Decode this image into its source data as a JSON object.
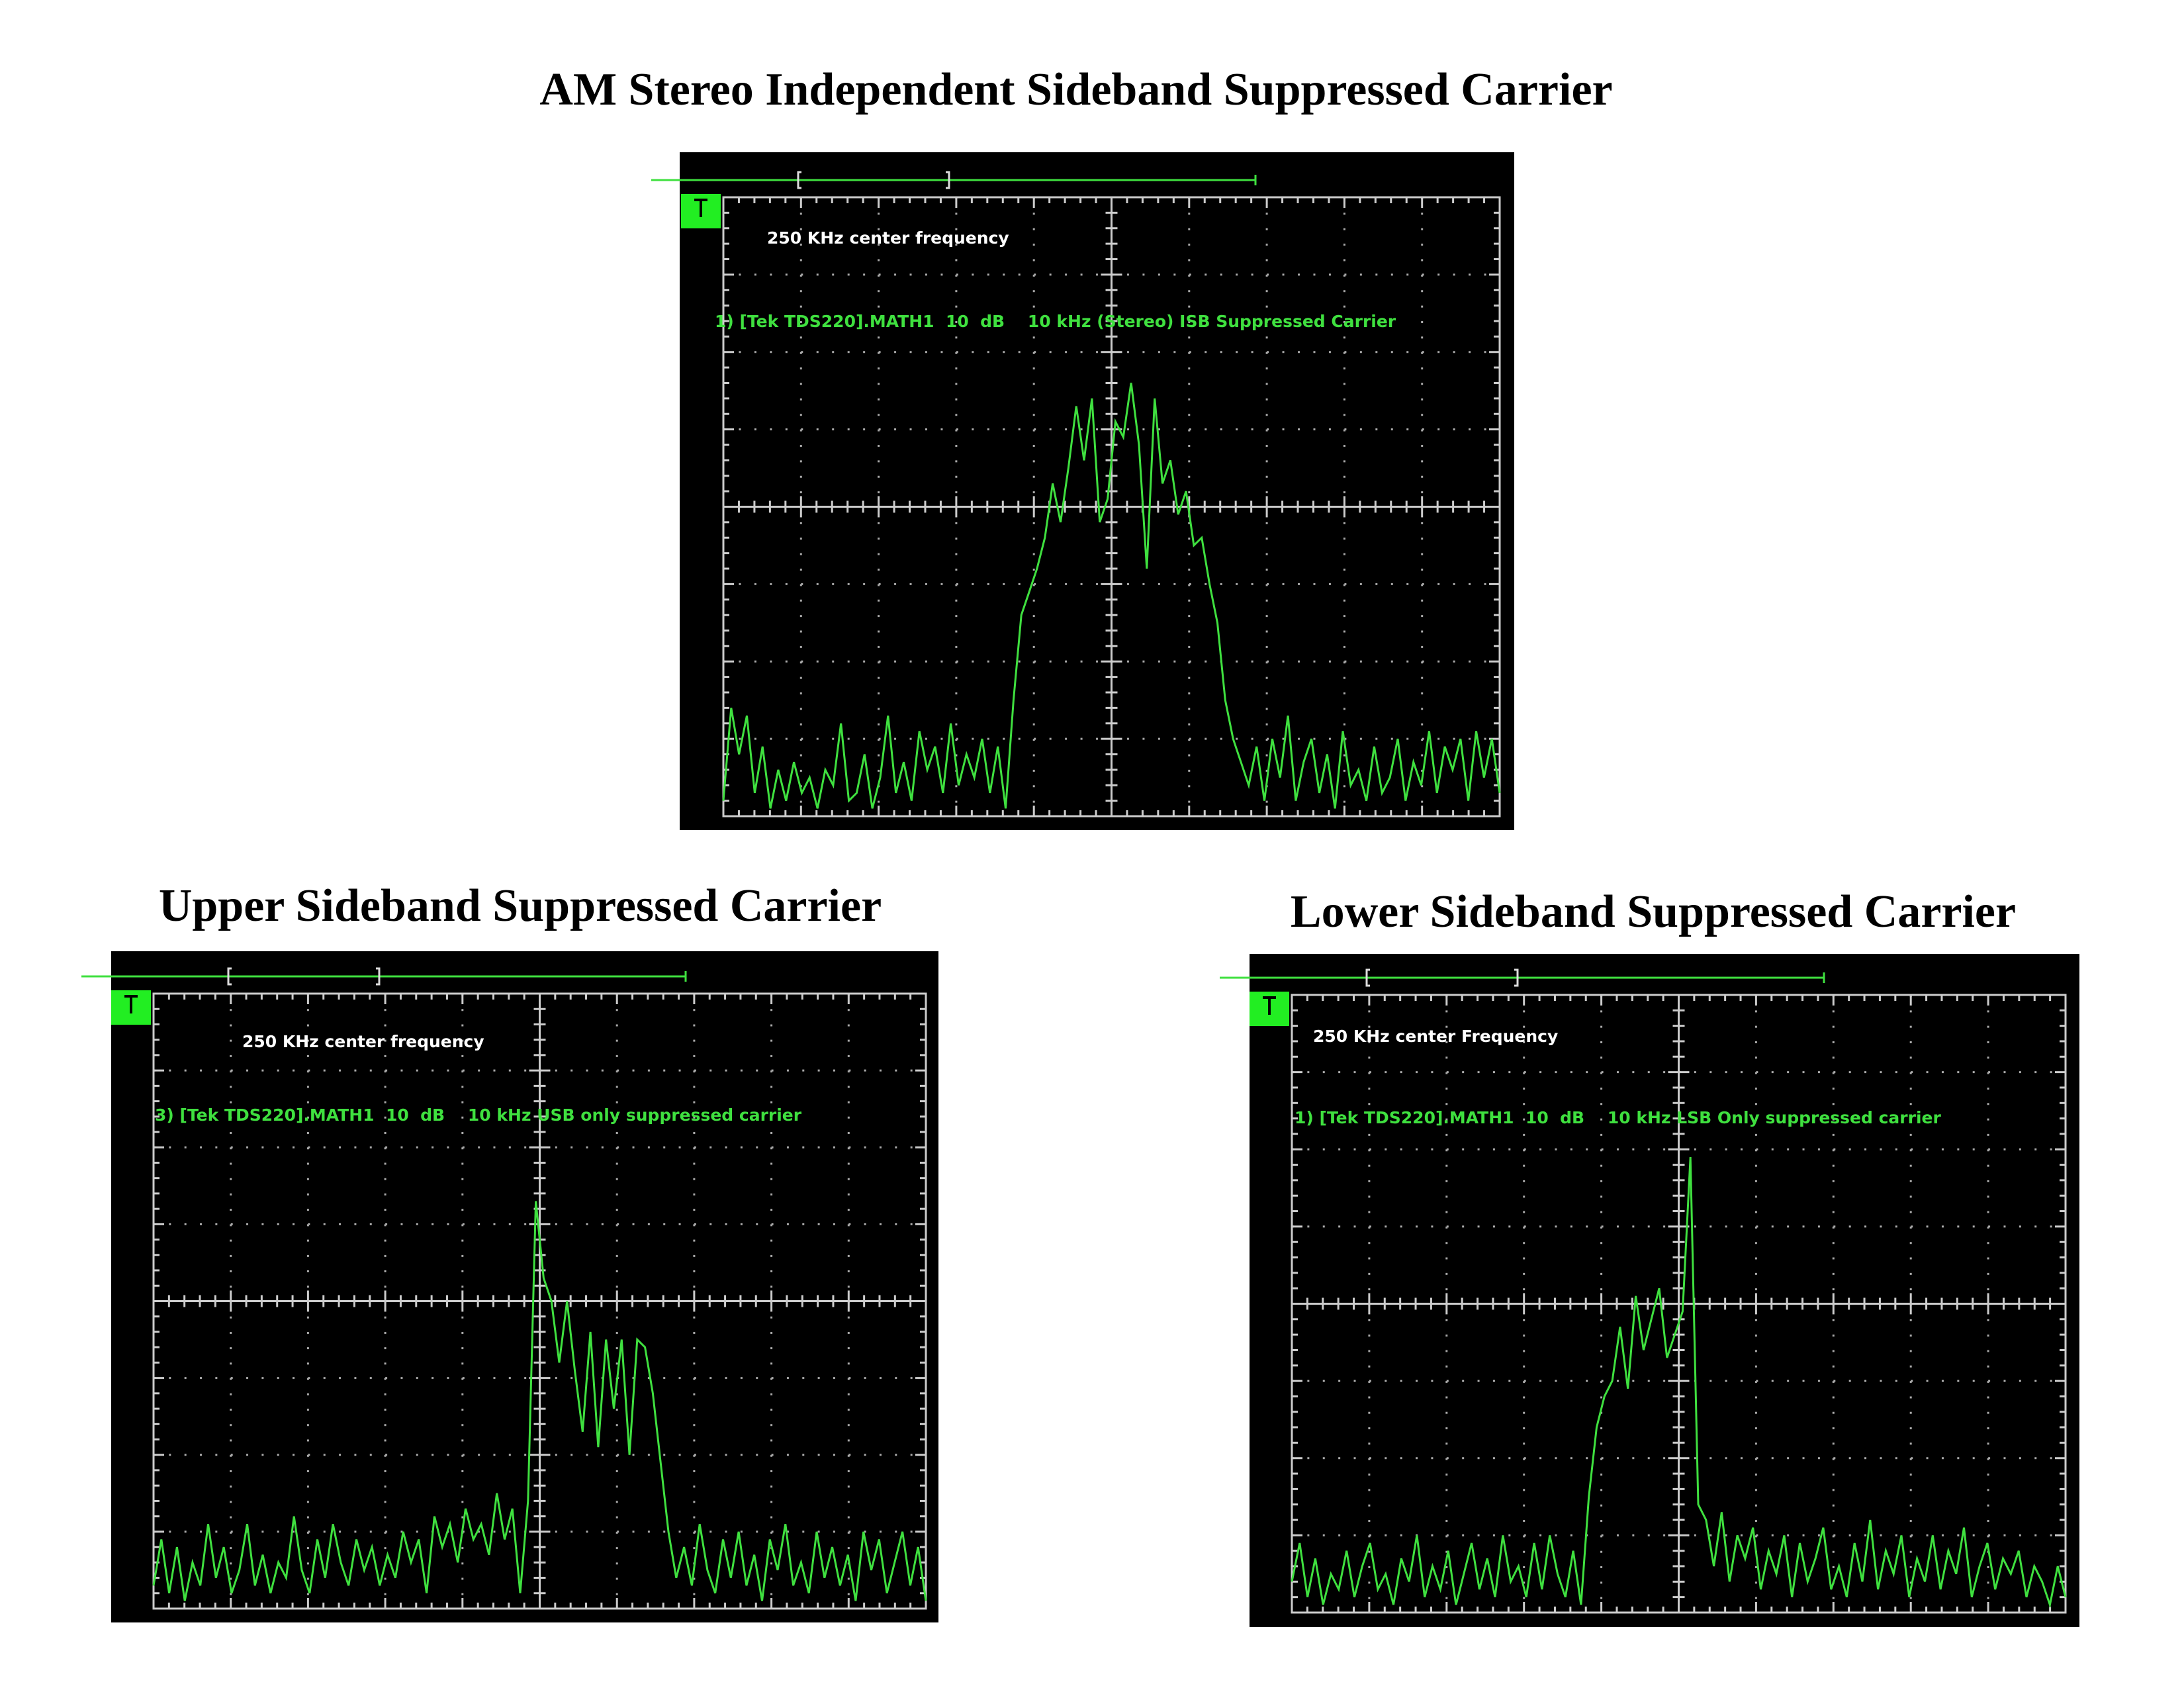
{
  "header": {
    "title": "AM Stereo Independent Sideband Suppressed Carrier"
  },
  "chart_data": [
    {
      "type": "line",
      "title": "",
      "annotations": [
        "250 KHz center frequency",
        "1) [Tek TDS220].MATH1  10  dB    10 kHz (Stereo) ISB Suppressed Carrier"
      ],
      "color": "#3fe03f",
      "ylim": [
        0,
        8
      ],
      "values": [
        0.2,
        1.4,
        0.8,
        1.3,
        0.3,
        0.9,
        0.1,
        0.6,
        0.2,
        0.7,
        0.3,
        0.5,
        0.1,
        0.6,
        0.4,
        1.2,
        0.2,
        0.3,
        0.8,
        0.1,
        0.5,
        1.3,
        0.3,
        0.7,
        0.2,
        1.1,
        0.6,
        0.9,
        0.3,
        1.2,
        0.4,
        0.8,
        0.5,
        1.0,
        0.3,
        0.9,
        0.1,
        1.5,
        2.6,
        2.9,
        3.2,
        3.6,
        4.3,
        3.8,
        4.5,
        5.3,
        4.6,
        5.4,
        3.8,
        4.1,
        5.1,
        4.9,
        5.6,
        4.8,
        3.2,
        5.4,
        4.3,
        4.6,
        3.9,
        4.2,
        3.5,
        3.6,
        3.0,
        2.5,
        1.5,
        1.0,
        0.7,
        0.4,
        0.9,
        0.2,
        1.0,
        0.5,
        1.3,
        0.2,
        0.7,
        1.0,
        0.3,
        0.8,
        0.1,
        1.1,
        0.4,
        0.6,
        0.2,
        0.9,
        0.3,
        0.5,
        1.0,
        0.2,
        0.7,
        0.4,
        1.1,
        0.3,
        0.9,
        0.6,
        1.0,
        0.2,
        1.1,
        0.5,
        1.0,
        0.3
      ]
    },
    {
      "type": "line",
      "title": "Upper Sideband Suppressed Carrier",
      "annotations": [
        "250 KHz center frequency",
        "3) [Tek TDS220].MATH1  10  dB    10 kHz USB only suppressed carrier"
      ],
      "color": "#3fe03f",
      "ylim": [
        0,
        8
      ],
      "values": [
        0.3,
        0.9,
        0.2,
        0.8,
        0.1,
        0.6,
        0.3,
        1.1,
        0.4,
        0.8,
        0.2,
        0.5,
        1.1,
        0.3,
        0.7,
        0.2,
        0.6,
        0.4,
        1.2,
        0.5,
        0.2,
        0.9,
        0.4,
        1.1,
        0.6,
        0.3,
        0.9,
        0.5,
        0.8,
        0.3,
        0.7,
        0.4,
        1.0,
        0.6,
        0.9,
        0.2,
        1.2,
        0.8,
        1.1,
        0.6,
        1.3,
        0.9,
        1.1,
        0.7,
        1.5,
        0.9,
        1.3,
        0.2,
        1.4,
        5.3,
        4.3,
        4.0,
        3.2,
        4.0,
        3.1,
        2.3,
        3.6,
        2.1,
        3.5,
        2.6,
        3.5,
        2.0,
        3.5,
        3.4,
        2.8,
        1.9,
        1.0,
        0.4,
        0.8,
        0.3,
        1.1,
        0.5,
        0.2,
        0.9,
        0.4,
        1.0,
        0.3,
        0.7,
        0.1,
        0.9,
        0.5,
        1.1,
        0.3,
        0.6,
        0.2,
        1.0,
        0.4,
        0.8,
        0.3,
        0.7,
        0.1,
        1.0,
        0.5,
        0.9,
        0.2,
        0.6,
        1.0,
        0.3,
        0.8,
        0.1
      ]
    },
    {
      "type": "line",
      "title": "Lower Sideband Suppressed Carrier",
      "annotations": [
        "250 KHz center Frequency",
        "1) [Tek TDS220].MATH1  10  dB    10 kHz LSB Only suppressed carrier"
      ],
      "color": "#3fe03f",
      "ylim": [
        0,
        8
      ],
      "values": [
        0.4,
        0.9,
        0.2,
        0.7,
        0.1,
        0.5,
        0.3,
        0.8,
        0.2,
        0.6,
        0.9,
        0.3,
        0.5,
        0.1,
        0.7,
        0.4,
        1.0,
        0.2,
        0.6,
        0.3,
        0.8,
        0.1,
        0.5,
        0.9,
        0.3,
        0.7,
        0.2,
        1.0,
        0.4,
        0.6,
        0.2,
        0.9,
        0.3,
        1.0,
        0.5,
        0.2,
        0.8,
        0.1,
        1.5,
        2.4,
        2.8,
        3.0,
        3.7,
        2.9,
        4.1,
        3.4,
        3.8,
        4.2,
        3.3,
        3.6,
        3.9,
        5.9,
        1.4,
        1.2,
        0.6,
        1.3,
        0.4,
        1.0,
        0.7,
        1.1,
        0.3,
        0.8,
        0.5,
        1.0,
        0.2,
        0.9,
        0.4,
        0.7,
        1.1,
        0.3,
        0.6,
        0.2,
        0.9,
        0.4,
        1.2,
        0.3,
        0.8,
        0.5,
        1.0,
        0.2,
        0.7,
        0.4,
        1.0,
        0.3,
        0.8,
        0.5,
        1.1,
        0.2,
        0.6,
        0.9,
        0.3,
        0.7,
        0.5,
        0.8,
        0.2,
        0.6,
        0.4,
        0.1,
        0.6,
        0.2
      ]
    }
  ]
}
